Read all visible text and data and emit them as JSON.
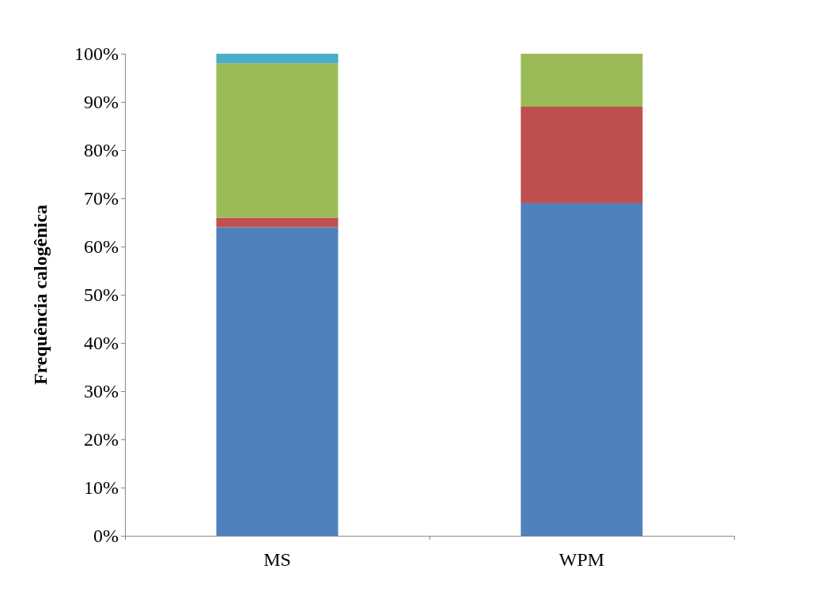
{
  "chart_data": {
    "type": "bar",
    "stacked": true,
    "ylabel": "Frequência calogênica",
    "categories": [
      "MS",
      "WPM"
    ],
    "series": [
      {
        "color": "#4f81bd",
        "values": [
          64,
          69
        ]
      },
      {
        "color": "#c0504d",
        "values": [
          2,
          20
        ]
      },
      {
        "color": "#9bbb59",
        "values": [
          32,
          11
        ]
      },
      {
        "color": "#4bacc6",
        "values": [
          2,
          0
        ]
      }
    ],
    "ylim": [
      0,
      100
    ],
    "yticks": [
      {
        "value": 0,
        "label": "0%"
      },
      {
        "value": 10,
        "label": "10%"
      },
      {
        "value": 20,
        "label": "20%"
      },
      {
        "value": 30,
        "label": "30%"
      },
      {
        "value": 40,
        "label": "40%"
      },
      {
        "value": 50,
        "label": "50%"
      },
      {
        "value": 60,
        "label": "60%"
      },
      {
        "value": 70,
        "label": "70%"
      },
      {
        "value": 80,
        "label": "80%"
      },
      {
        "value": 90,
        "label": "90%"
      },
      {
        "value": 100,
        "label": "100%"
      }
    ]
  }
}
